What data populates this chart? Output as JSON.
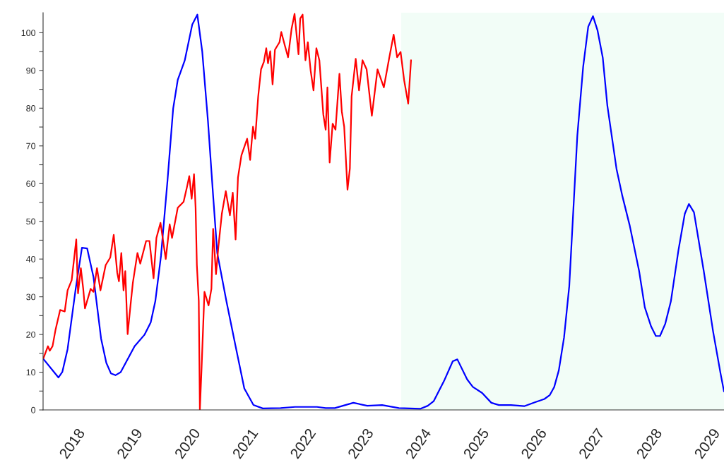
{
  "chart_data": {
    "type": "line",
    "xlim": [
      "2017-06-26",
      "2029-04-12"
    ],
    "ylim": [
      0,
      105.3
    ],
    "xticks": [
      "2018",
      "2019",
      "2020",
      "2021",
      "2022",
      "2023",
      "2024",
      "2025",
      "2026",
      "2027",
      "2028",
      "2029"
    ],
    "yticks": [
      0,
      {
        "value": 5,
        "label": null
      },
      10,
      {
        "value": 15,
        "label": null
      },
      20,
      {
        "value": 25,
        "label": null
      },
      30,
      {
        "value": 35,
        "label": null
      },
      40,
      {
        "value": 45,
        "label": null
      },
      50,
      {
        "value": 55,
        "label": null
      },
      60,
      {
        "value": 65,
        "label": null
      },
      70,
      {
        "value": 75,
        "label": null
      },
      80,
      {
        "value": 85,
        "label": null
      },
      90,
      {
        "value": 95,
        "label": null
      },
      100
    ],
    "grid": false,
    "marker": "none",
    "line_style": "solid",
    "bands": [
      {
        "axis": "x",
        "from": "2023-09-09",
        "to": "2029-04-12",
        "color": "#f2fdf7"
      }
    ],
    "series": [
      {
        "color": "#0000ff",
        "x": [
          "2017-06-26",
          "2017-10-01",
          "2017-10-26",
          "2017-11-28",
          "2018-01-18",
          "2018-02-27",
          "2018-04-01",
          "2018-05-11",
          "2018-06-28",
          "2018-07-31",
          "2018-08-29",
          "2018-09-27",
          "2018-10-30",
          "2019-01-26",
          "2019-03-29",
          "2019-05-08",
          "2019-06-06",
          "2019-07-12",
          "2019-08-22",
          "2019-09-27",
          "2019-10-26",
          "2019-12-09",
          "2020-01-26",
          "2020-02-27",
          "2020-03-29",
          "2020-05-04",
          "2020-06-06",
          "2020-07-02",
          "2020-08-29",
          "2020-10-26",
          "2020-12-20",
          "2021-02-16",
          "2021-04-16",
          "2021-08-07",
          "2021-11-06",
          "2022-03-25",
          "2022-05-19",
          "2022-07-16",
          "2022-11-10",
          "2023-02-06",
          "2023-05-11",
          "2023-08-25",
          "2024-01-07",
          "2024-02-24",
          "2024-04-01",
          "2024-06-06",
          "2024-07-31",
          "2024-08-29",
          "2024-10-30",
          "2024-12-05",
          "2025-02-02",
          "2025-04-01",
          "2025-05-19",
          "2025-08-03",
          "2025-10-26",
          "2026-01-07",
          "2026-03-03",
          "2026-04-05",
          "2026-05-04",
          "2026-06-02",
          "2026-07-05",
          "2026-08-07",
          "2026-09-27",
          "2026-11-03",
          "2026-12-05",
          "2027-01-04",
          "2027-02-02",
          "2027-03-07",
          "2027-04-05",
          "2027-06-02",
          "2027-07-09",
          "2027-08-25",
          "2027-10-23",
          "2027-11-28",
          "2028-01-07",
          "2028-02-06",
          "2028-03-03",
          "2028-04-05",
          "2028-05-11",
          "2028-06-28",
          "2028-08-07",
          "2028-09-02",
          "2028-10-04",
          "2028-12-05",
          "2029-02-02",
          "2029-03-21",
          "2029-04-12"
        ],
        "values": [
          13.6,
          8.6,
          10.1,
          16.1,
          32,
          43,
          42.8,
          35.2,
          18.9,
          12.5,
          9.7,
          9.2,
          10,
          16.9,
          19.9,
          23.2,
          28.8,
          40.8,
          60.7,
          79.9,
          87.5,
          92.6,
          102.2,
          104.8,
          95,
          76.7,
          56.7,
          41.6,
          28.8,
          16.9,
          5.7,
          1.3,
          0.4,
          0.5,
          0.8,
          0.8,
          0.5,
          0.5,
          1.9,
          1.1,
          1.3,
          0.5,
          0.3,
          1.1,
          2.3,
          7.7,
          12.9,
          13.4,
          8.1,
          6.1,
          4.5,
          1.9,
          1.3,
          1.3,
          1.0,
          2.1,
          2.9,
          3.9,
          6.1,
          10.5,
          19.2,
          32.8,
          72.7,
          91,
          101.6,
          104.4,
          100.6,
          93.4,
          80.7,
          63.9,
          56.7,
          48.8,
          36.8,
          27.2,
          22.1,
          19.6,
          19.6,
          22.8,
          28.8,
          42.4,
          52,
          54.6,
          52.4,
          36.8,
          20.8,
          9.7,
          4.9
        ]
      },
      {
        "color": "#ff0000",
        "x": [
          "2017-06-28",
          "2017-07-27",
          "2017-08-07",
          "2017-08-25",
          "2017-09-13",
          "2017-10-12",
          "2017-11-10",
          "2017-11-28",
          "2017-12-24",
          "2018-01-22",
          "2018-02-02",
          "2018-02-20",
          "2018-03-07",
          "2018-03-18",
          "2018-04-23",
          "2018-05-11",
          "2018-06-02",
          "2018-06-24",
          "2018-07-27",
          "2018-08-25",
          "2018-09-16",
          "2018-10-08",
          "2018-10-19",
          "2018-11-03",
          "2018-11-17",
          "2018-11-28",
          "2018-12-13",
          "2019-01-01",
          "2019-01-15",
          "2019-02-13",
          "2019-03-03",
          "2019-04-09",
          "2019-04-30",
          "2019-05-26",
          "2019-06-13",
          "2019-07-09",
          "2019-08-11",
          "2019-09-05",
          "2019-09-20",
          "2019-10-26",
          "2019-12-02",
          "2019-12-24",
          "2020-01-07",
          "2020-01-22",
          "2020-02-06",
          "2020-02-16",
          "2020-02-24",
          "2020-03-07",
          "2020-03-14",
          "2020-03-25",
          "2020-04-12",
          "2020-05-08",
          "2020-05-26",
          "2020-06-06",
          "2020-06-24",
          "2020-07-09",
          "2020-07-31",
          "2020-08-25",
          "2020-09-20",
          "2020-10-08",
          "2020-10-26",
          "2020-11-10",
          "2020-12-02",
          "2021-01-07",
          "2021-01-26",
          "2021-02-13",
          "2021-02-27",
          "2021-03-18",
          "2021-04-05",
          "2021-04-23",
          "2021-05-08",
          "2021-05-19",
          "2021-06-02",
          "2021-06-17",
          "2021-07-02",
          "2021-07-31",
          "2021-08-11",
          "2021-09-02",
          "2021-09-23",
          "2021-10-15",
          "2021-11-03",
          "2021-11-28",
          "2021-12-09",
          "2021-12-24",
          "2022-01-11",
          "2022-01-26",
          "2022-02-13",
          "2022-03-03",
          "2022-03-21",
          "2022-04-09",
          "2022-05-04",
          "2022-05-19",
          "2022-05-30",
          "2022-06-13",
          "2022-07-02",
          "2022-07-20",
          "2022-08-14",
          "2022-08-29",
          "2022-09-13",
          "2022-10-04",
          "2022-10-19",
          "2022-10-30",
          "2022-11-25",
          "2022-12-16",
          "2023-01-07",
          "2023-02-02",
          "2023-03-07",
          "2023-04-12",
          "2023-05-22",
          "2023-06-24",
          "2023-07-23",
          "2023-08-14",
          "2023-09-05",
          "2023-09-27",
          "2023-10-23",
          "2023-11-10"
        ],
        "values": [
          13.7,
          16.9,
          15.7,
          16.9,
          21.3,
          26.5,
          26.1,
          31.7,
          34.4,
          45.2,
          30.9,
          37.6,
          32.1,
          26.9,
          32.1,
          31.3,
          37.6,
          31.7,
          38.4,
          40.4,
          46.4,
          36.4,
          34.1,
          41.6,
          31.7,
          36.8,
          20.1,
          28.1,
          33.7,
          41.6,
          38.8,
          44.8,
          44.8,
          34.9,
          45.6,
          49.6,
          40.0,
          49.2,
          45.6,
          53.6,
          55.2,
          59.2,
          62.0,
          56.0,
          62.5,
          53.6,
          38.4,
          28.9,
          0,
          11.3,
          31.3,
          27.7,
          32.1,
          48.0,
          36.0,
          43.2,
          52.0,
          58.0,
          51.6,
          57.6,
          45.2,
          61.6,
          67.5,
          71.9,
          66.3,
          75.1,
          71.9,
          83.1,
          90.3,
          92.3,
          95.9,
          91.9,
          95.1,
          86.3,
          95.5,
          97.5,
          100.2,
          96.7,
          93.5,
          101.0,
          105.0,
          94.3,
          103.8,
          104.8,
          92.7,
          97.5,
          89.9,
          84.7,
          95.9,
          92.7,
          78.3,
          74.3,
          85.5,
          65.6,
          75.9,
          74.3,
          89.1,
          79.1,
          75.1,
          58.4,
          64.0,
          83.1,
          93.1,
          84.7,
          92.7,
          90.3,
          78.0,
          90.3,
          85.5,
          93.1,
          99.5,
          93.5,
          94.9,
          87.5,
          81.2,
          92.7
        ]
      }
    ]
  }
}
